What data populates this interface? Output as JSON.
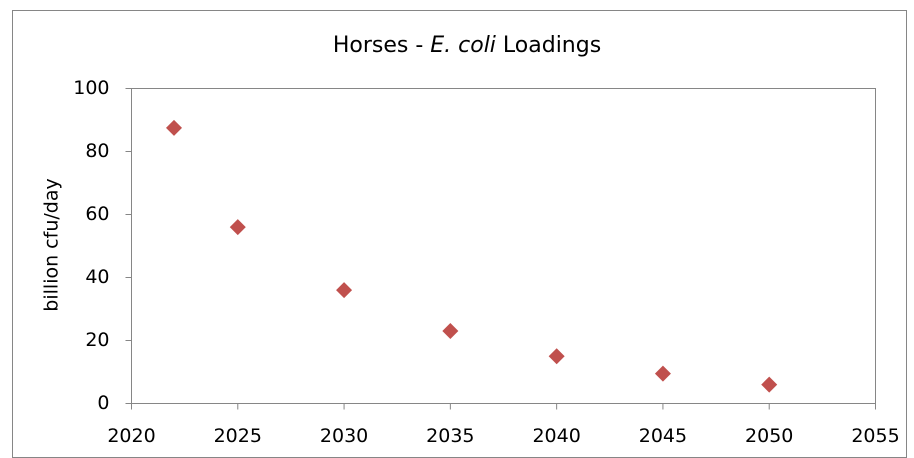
{
  "chart_data": {
    "type": "scatter",
    "title_parts": [
      "Horses - ",
      "E. coli",
      " Loadings"
    ],
    "y_label": "billion cfu/day",
    "x": [
      2022,
      2025,
      2030,
      2035,
      2040,
      2045,
      2050
    ],
    "values": [
      87.5,
      56,
      36,
      23,
      15,
      9.5,
      6
    ],
    "color": "#c0504d",
    "marker": "diamond",
    "xlim": [
      2020,
      2055
    ],
    "xticks": [
      2020,
      2025,
      2030,
      2035,
      2040,
      2045,
      2050,
      2055
    ],
    "ylim": [
      0,
      100
    ],
    "yticks": [
      0,
      20,
      40,
      60,
      80,
      100
    ],
    "grid": false
  }
}
